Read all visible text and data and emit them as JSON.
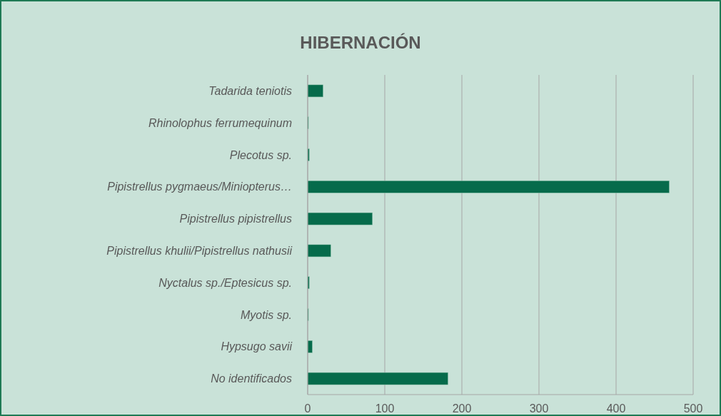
{
  "chart_data": {
    "type": "bar",
    "title": "HIBERNACIÓN",
    "orientation": "horizontal",
    "categories": [
      "Tadarida teniotis",
      "Rhinolophus ferrumequinum",
      "Plecotus sp.",
      "Pipistrellus pygmaeus/Miniopterus…",
      "Pipistrellus pipistrellus",
      "Pipistrellus khulii/Pipistrellus nathusii",
      "Nyctalus sp./Eptesicus sp.",
      "Myotis sp.",
      "Hypsugo savii",
      "No identificados"
    ],
    "values": [
      20,
      1,
      2,
      469,
      84,
      30,
      2,
      1,
      6,
      182
    ],
    "color": "#066b4b",
    "xlim": [
      0,
      500
    ],
    "xticks": [
      0,
      100,
      200,
      300,
      400,
      500
    ],
    "grid": "x"
  }
}
